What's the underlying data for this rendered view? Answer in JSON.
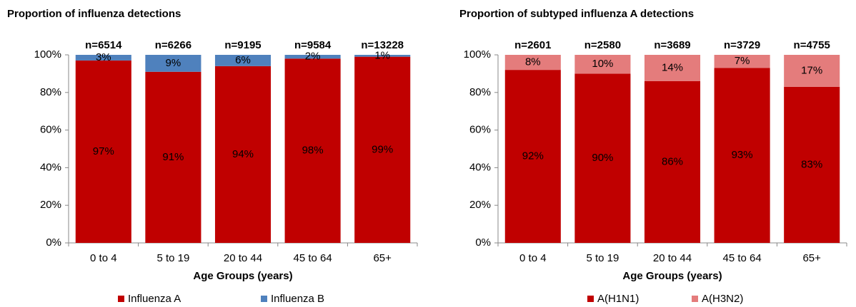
{
  "chart_data": [
    {
      "type": "bar",
      "stacked": true,
      "title": "Proportion of influenza detections",
      "xlabel": "Age Groups (years)",
      "categories": [
        "0 to 4",
        "5 to 19",
        "20 to 44",
        "45 to 64",
        "65+"
      ],
      "annotations": [
        "n=6514",
        "n=6266",
        "n=9195",
        "n=9584",
        "n=13228"
      ],
      "series": [
        {
          "name": "Influenza A",
          "color": "#c00000",
          "values": [
            97,
            91,
            94,
            98,
            99
          ],
          "value_labels": [
            "97%",
            "91%",
            "94%",
            "98%",
            "99%"
          ]
        },
        {
          "name": "Influenza B",
          "color": "#4f81bd",
          "values": [
            3,
            9,
            6,
            2,
            1
          ],
          "value_labels": [
            "3%",
            "9%",
            "6%",
            "2%",
            "1%"
          ]
        }
      ],
      "ylim": [
        0,
        100
      ],
      "yticks": [
        {
          "value": 0,
          "label": "0%"
        },
        {
          "value": 20,
          "label": "20%"
        },
        {
          "value": 40,
          "label": "40%"
        },
        {
          "value": 60,
          "label": "60%"
        },
        {
          "value": 80,
          "label": "80%"
        },
        {
          "value": 100,
          "label": "100%"
        }
      ],
      "grid": false,
      "legend": "bottom"
    },
    {
      "type": "bar",
      "stacked": true,
      "title": "Proportion of subtyped influenza A detections",
      "xlabel": "Age Groups (years)",
      "categories": [
        "0 to 4",
        "5 to 19",
        "20 to 44",
        "45 to 64",
        "65+"
      ],
      "annotations": [
        "n=2601",
        "n=2580",
        "n=3689",
        "n=3729",
        "n=4755"
      ],
      "series": [
        {
          "name": "A(H1N1)",
          "color": "#c00000",
          "values": [
            92,
            90,
            86,
            93,
            83
          ],
          "value_labels": [
            "92%",
            "90%",
            "86%",
            "93%",
            "83%"
          ]
        },
        {
          "name": "A(H3N2)",
          "color": "#e47c7c",
          "values": [
            8,
            10,
            14,
            7,
            17
          ],
          "value_labels": [
            "8%",
            "10%",
            "14%",
            "7%",
            "17%"
          ]
        }
      ],
      "ylim": [
        0,
        100
      ],
      "yticks": [
        {
          "value": 0,
          "label": "0%"
        },
        {
          "value": 20,
          "label": "20%"
        },
        {
          "value": 40,
          "label": "40%"
        },
        {
          "value": 60,
          "label": "60%"
        },
        {
          "value": 80,
          "label": "80%"
        },
        {
          "value": 100,
          "label": "100%"
        }
      ],
      "grid": false,
      "legend": "bottom"
    }
  ]
}
